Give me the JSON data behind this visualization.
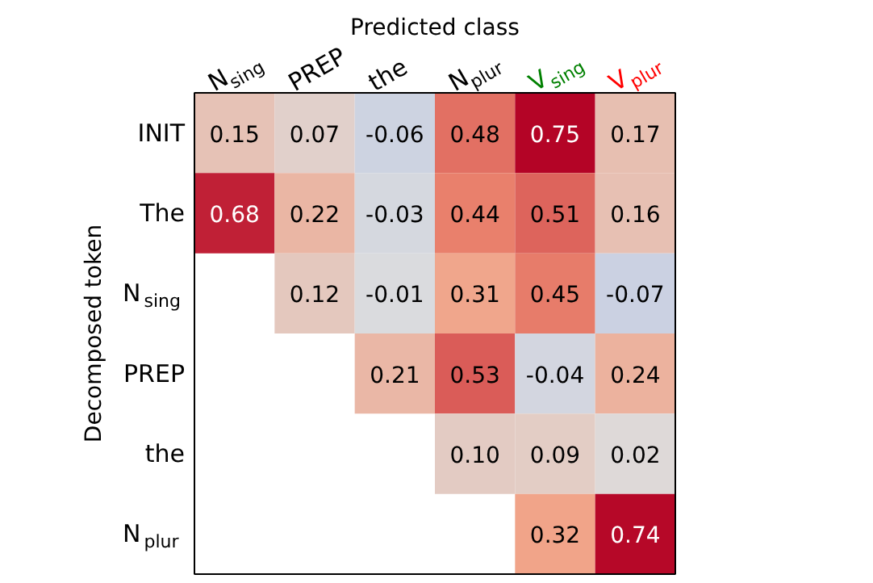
{
  "chart_data": {
    "type": "heatmap",
    "title": "Predicted class",
    "ylabel": "Decomposed token",
    "categories": [
      "N$_{sing}$",
      "PREP",
      "the",
      "N$_{plur}$",
      "V$_{sing}$",
      "V$_{plur}$"
    ],
    "y_categories": [
      "INIT",
      "The",
      "N$_{sing}$",
      "PREP",
      "the",
      "N$_{plur}$"
    ],
    "cells": [
      [
        0.15,
        0.07,
        -0.06,
        0.48,
        0.75,
        0.17
      ],
      [
        0.68,
        0.22,
        -0.03,
        0.44,
        0.51,
        0.16
      ],
      [
        null,
        0.12,
        -0.01,
        0.31,
        0.45,
        -0.07
      ],
      [
        null,
        null,
        0.21,
        0.53,
        -0.04,
        0.24
      ],
      [
        null,
        null,
        null,
        0.1,
        0.09,
        0.02
      ],
      [
        null,
        null,
        null,
        null,
        0.32,
        0.74
      ]
    ],
    "cell_labels": [
      [
        "0.15",
        "0.07",
        "-0.06",
        "0.48",
        "0.75",
        "0.17"
      ],
      [
        "0.68",
        "0.22",
        "-0.03",
        "0.44",
        "0.51",
        "0.16"
      ],
      [
        null,
        "0.12",
        "-0.01",
        "0.31",
        "0.45",
        "-0.07"
      ],
      [
        null,
        null,
        "0.21",
        "0.53",
        "-0.04",
        "0.24"
      ],
      [
        null,
        null,
        null,
        "0.10",
        "0.09",
        "0.02"
      ],
      [
        null,
        null,
        null,
        null,
        "0.32",
        "0.74"
      ]
    ]
  }
}
